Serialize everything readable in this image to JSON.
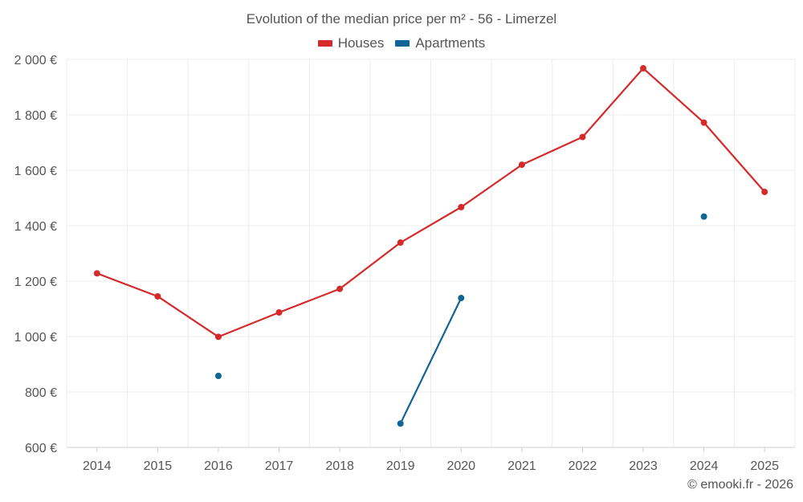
{
  "chart_data": {
    "type": "line",
    "title": "Evolution of the median price per m² - 56 - Limerzel",
    "categories": [
      "2014",
      "2015",
      "2016",
      "2017",
      "2018",
      "2019",
      "2020",
      "2021",
      "2022",
      "2023",
      "2024",
      "2025"
    ],
    "series": [
      {
        "name": "Houses",
        "color": "#d42a2a",
        "values": [
          1228,
          1145,
          999,
          1087,
          1172,
          1339,
          1467,
          1620,
          1720,
          1968,
          1772,
          1522
        ]
      },
      {
        "name": "Apartments",
        "color": "#106496",
        "values": [
          null,
          null,
          858,
          null,
          null,
          686,
          1139,
          null,
          null,
          null,
          1433,
          null
        ]
      }
    ],
    "y_ticks": [
      600,
      800,
      1000,
      1200,
      1400,
      1600,
      1800,
      2000
    ],
    "y_tick_labels": [
      "600 €",
      "800 €",
      "1 000 €",
      "1 200 €",
      "1 400 €",
      "1 600 €",
      "1 800 €",
      "2 000 €"
    ],
    "ylim": [
      600,
      2000
    ],
    "xlabel": "",
    "ylabel": "",
    "legend_position": "top-center",
    "grid": true
  },
  "credit": "© emooki.fr - 2026"
}
